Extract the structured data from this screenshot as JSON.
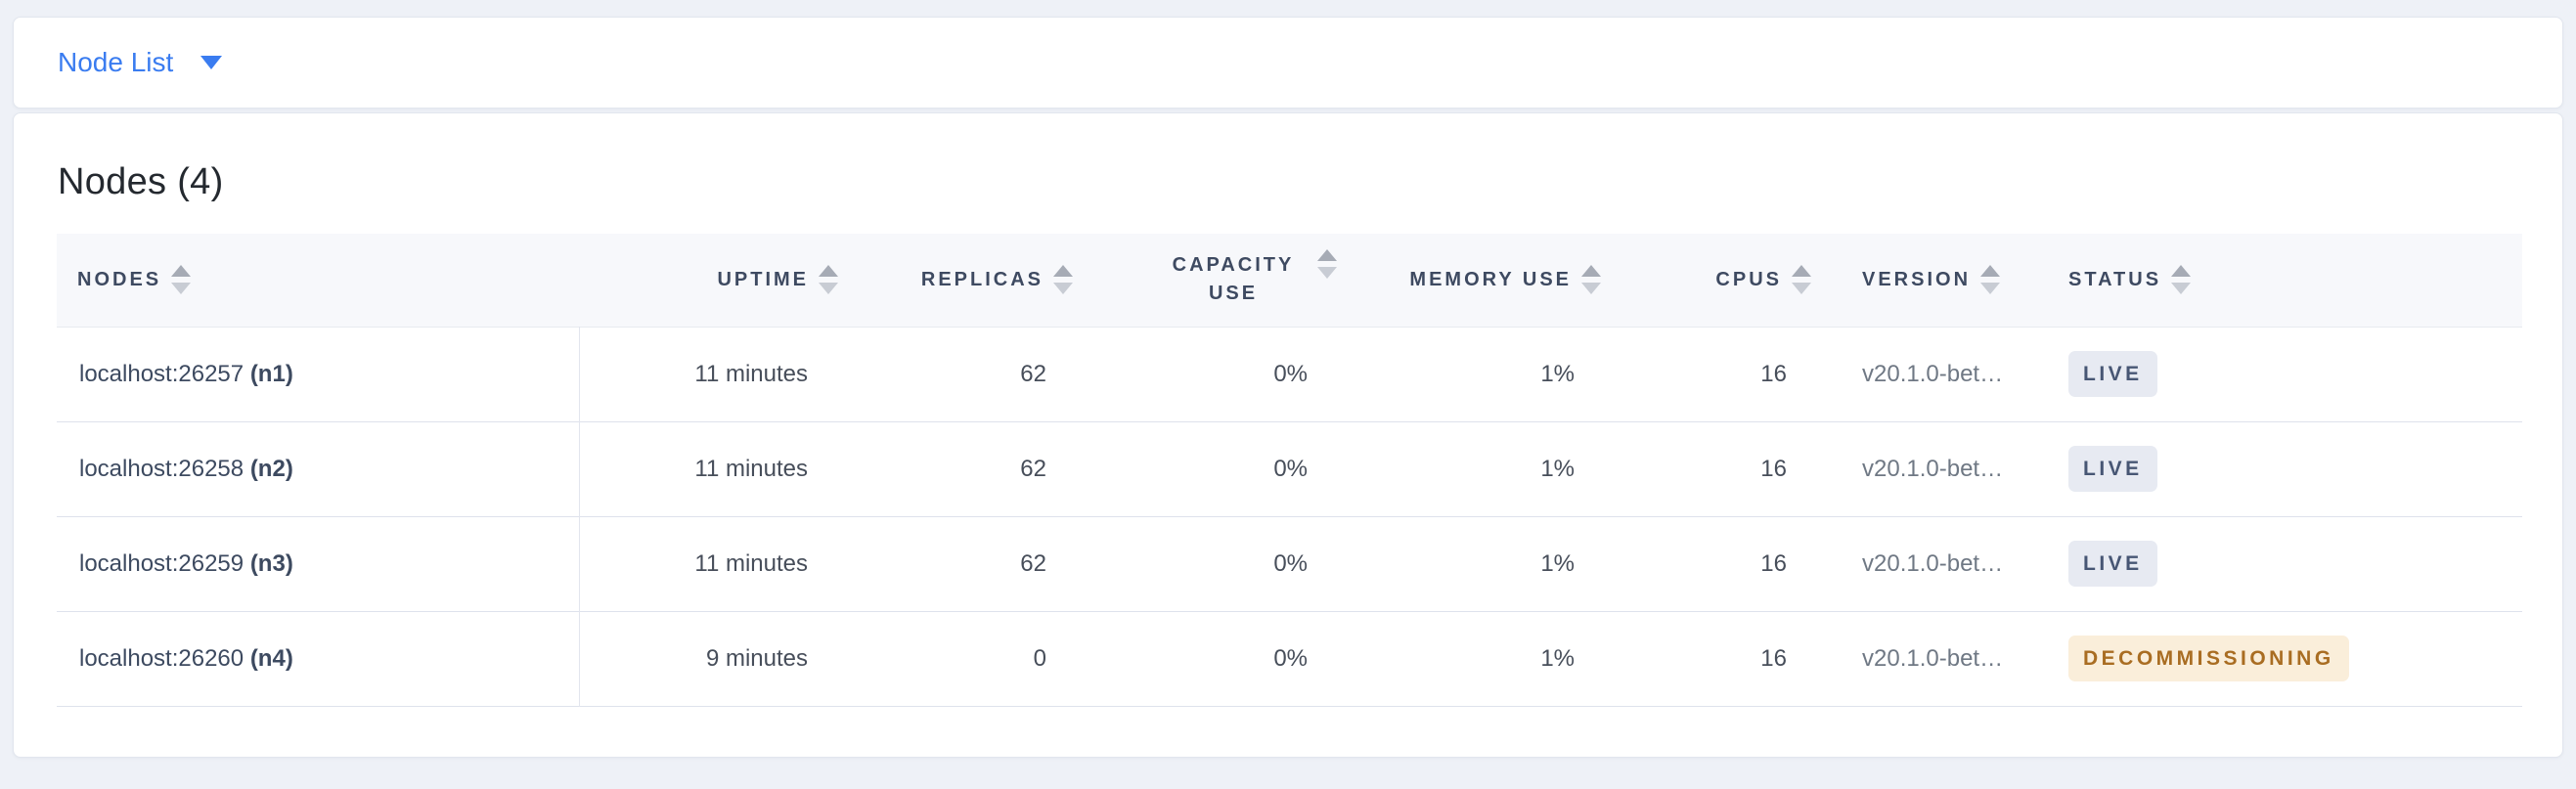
{
  "header_bar": {
    "view_dropdown": {
      "label": "Node List",
      "icon": "caret-down-icon"
    }
  },
  "panel": {
    "title": "Nodes (4)"
  },
  "table": {
    "columns": [
      {
        "id": "nodes",
        "label": "NODES",
        "sortable": true
      },
      {
        "id": "uptime",
        "label": "UPTIME",
        "sortable": true
      },
      {
        "id": "replicas",
        "label": "REPLICAS",
        "sortable": true
      },
      {
        "id": "capacity-use",
        "label": "CAPACITY USE",
        "sortable": true
      },
      {
        "id": "memory-use",
        "label": "MEMORY USE",
        "sortable": true
      },
      {
        "id": "cpus",
        "label": "CPUS",
        "sortable": true
      },
      {
        "id": "version",
        "label": "VERSION",
        "sortable": true
      },
      {
        "id": "status",
        "label": "STATUS",
        "sortable": true
      }
    ],
    "rows": [
      {
        "address": "localhost:26257",
        "name": "(n1)",
        "uptime": "11 minutes",
        "replicas": "62",
        "capacity_use": "0%",
        "memory_use": "1%",
        "cpus": "16",
        "version": "v20.1.0-bet…",
        "status": {
          "label": "LIVE",
          "type": "live"
        }
      },
      {
        "address": "localhost:26258",
        "name": "(n2)",
        "uptime": "11 minutes",
        "replicas": "62",
        "capacity_use": "0%",
        "memory_use": "1%",
        "cpus": "16",
        "version": "v20.1.0-bet…",
        "status": {
          "label": "LIVE",
          "type": "live"
        }
      },
      {
        "address": "localhost:26259",
        "name": "(n3)",
        "uptime": "11 minutes",
        "replicas": "62",
        "capacity_use": "0%",
        "memory_use": "1%",
        "cpus": "16",
        "version": "v20.1.0-bet…",
        "status": {
          "label": "LIVE",
          "type": "live"
        }
      },
      {
        "address": "localhost:26260",
        "name": "(n4)",
        "uptime": "9 minutes",
        "replicas": "0",
        "capacity_use": "0%",
        "memory_use": "1%",
        "cpus": "16",
        "version": "v20.1.0-bet…",
        "status": {
          "label": "DECOMMISSIONING",
          "type": "decommissioning"
        }
      }
    ]
  },
  "colors": {
    "accent_blue": "#3a7cf0",
    "status_live_bg": "#e7eaf2",
    "status_live_text": "#475674",
    "status_decommissioning_bg": "#faeeda",
    "status_decommissioning_text": "#a96d22"
  }
}
